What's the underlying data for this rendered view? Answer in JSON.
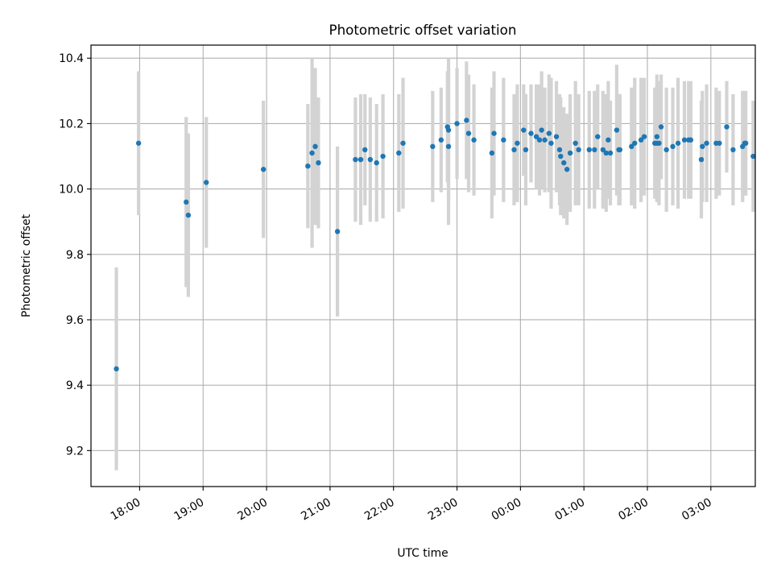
{
  "chart_data": {
    "type": "scatter",
    "title": "Photometric offset variation",
    "xlabel": "UTC time",
    "ylabel": "Photometric offset",
    "x_is_time": true,
    "x_ticks": [
      "18:00",
      "19:00",
      "20:00",
      "21:00",
      "22:00",
      "23:00",
      "00:00",
      "01:00",
      "02:00",
      "03:00"
    ],
    "x_tick_values": [
      "2021-01-01 18:00",
      "2021-01-01 19:00",
      "2021-01-01 20:00",
      "2021-01-01 21:00",
      "2021-01-01 22:00",
      "2021-01-01 23:00",
      "2021-01-02 00:00",
      "2021-01-02 01:00",
      "2021-01-02 02:00",
      "2021-01-02 03:00"
    ],
    "xlim": [
      "2021-01-01 17:14",
      "2021-01-02 03:42"
    ],
    "ylim": [
      9.09,
      10.44
    ],
    "y_ticks": [
      "9.2",
      "9.4",
      "9.6",
      "9.8",
      "10.0",
      "10.2",
      "10.4"
    ],
    "y_tick_values": [
      9.2,
      9.4,
      9.6,
      9.8,
      10.0,
      10.2,
      10.4
    ],
    "grid": true,
    "marker_color": "#1f77b4",
    "errorbar_color": "#d3d3d3",
    "series": [
      {
        "x": [
          "2021-01-01 17:38",
          "2021-01-01 17:59",
          "2021-01-01 18:44",
          "2021-01-01 18:46",
          "2021-01-01 19:03",
          "2021-01-01 19:57",
          "2021-01-01 20:39",
          "2021-01-01 20:43",
          "2021-01-01 20:46",
          "2021-01-01 20:49",
          "2021-01-01 21:07",
          "2021-01-01 21:24",
          "2021-01-01 21:29",
          "2021-01-01 21:33",
          "2021-01-01 21:38",
          "2021-01-01 21:44",
          "2021-01-01 21:50",
          "2021-01-01 22:05",
          "2021-01-01 22:09",
          "2021-01-01 22:37",
          "2021-01-01 22:45",
          "2021-01-01 22:51",
          "2021-01-01 22:52",
          "2021-01-01 22:52",
          "2021-01-01 23:00",
          "2021-01-01 23:09",
          "2021-01-01 23:11",
          "2021-01-01 23:16",
          "2021-01-01 23:33",
          "2021-01-01 23:35",
          "2021-01-01 23:44",
          "2021-01-01 23:54",
          "2021-01-01 23:57",
          "2021-01-02 00:03",
          "2021-01-02 00:05",
          "2021-01-02 00:10",
          "2021-01-02 00:15",
          "2021-01-02 00:18",
          "2021-01-02 00:20",
          "2021-01-02 00:23",
          "2021-01-02 00:27",
          "2021-01-02 00:29",
          "2021-01-02 00:34",
          "2021-01-02 00:37",
          "2021-01-02 00:38",
          "2021-01-02 00:41",
          "2021-01-02 00:44",
          "2021-01-02 00:47",
          "2021-01-02 00:52",
          "2021-01-02 00:55",
          "2021-01-02 01:05",
          "2021-01-02 01:10",
          "2021-01-02 01:13",
          "2021-01-02 01:18",
          "2021-01-02 01:21",
          "2021-01-02 01:23",
          "2021-01-02 01:25",
          "2021-01-02 01:31",
          "2021-01-02 01:33",
          "2021-01-02 01:34",
          "2021-01-02 01:45",
          "2021-01-02 01:48",
          "2021-01-02 01:54",
          "2021-01-02 01:57",
          "2021-01-02 02:07",
          "2021-01-02 02:09",
          "2021-01-02 02:09",
          "2021-01-02 02:11",
          "2021-01-02 02:13",
          "2021-01-02 02:18",
          "2021-01-02 02:24",
          "2021-01-02 02:29",
          "2021-01-02 02:35",
          "2021-01-02 02:39",
          "2021-01-02 02:41",
          "2021-01-02 02:51",
          "2021-01-02 02:52",
          "2021-01-02 02:56",
          "2021-01-02 03:05",
          "2021-01-02 03:08",
          "2021-01-02 03:15",
          "2021-01-02 03:21",
          "2021-01-02 03:30",
          "2021-01-02 03:32",
          "2021-01-02 03:33",
          "2021-01-02 03:40"
        ],
        "y": [
          9.45,
          10.14,
          9.96,
          9.92,
          10.02,
          10.06,
          10.07,
          10.11,
          10.13,
          10.08,
          9.87,
          10.09,
          10.09,
          10.12,
          10.09,
          10.08,
          10.1,
          10.11,
          10.14,
          10.13,
          10.15,
          10.19,
          10.18,
          10.13,
          10.2,
          10.21,
          10.17,
          10.15,
          10.11,
          10.17,
          10.15,
          10.12,
          10.14,
          10.18,
          10.12,
          10.17,
          10.16,
          10.15,
          10.18,
          10.15,
          10.17,
          10.14,
          10.16,
          10.12,
          10.1,
          10.08,
          10.06,
          10.11,
          10.14,
          10.12,
          10.12,
          10.12,
          10.16,
          10.12,
          10.11,
          10.15,
          10.11,
          10.18,
          10.12,
          10.12,
          10.13,
          10.14,
          10.15,
          10.16,
          10.14,
          10.16,
          10.14,
          10.14,
          10.19,
          10.12,
          10.13,
          10.14,
          10.15,
          10.15,
          10.15,
          10.09,
          10.13,
          10.14,
          10.14,
          10.14,
          10.19,
          10.12,
          10.13,
          10.14,
          10.14,
          10.1
        ],
        "yerr": [
          0.31,
          0.22,
          0.26,
          0.25,
          0.2,
          0.21,
          0.19,
          0.29,
          0.24,
          0.2,
          0.26,
          0.19,
          0.2,
          0.17,
          0.19,
          0.18,
          0.19,
          0.18,
          0.2,
          0.17,
          0.16,
          0.17,
          0.22,
          0.24,
          0.17,
          0.18,
          0.18,
          0.17,
          0.2,
          0.19,
          0.19,
          0.17,
          0.18,
          0.14,
          0.17,
          0.15,
          0.16,
          0.17,
          0.18,
          0.16,
          0.18,
          0.2,
          0.17,
          0.17,
          0.18,
          0.17,
          0.17,
          0.18,
          0.19,
          0.17,
          0.18,
          0.18,
          0.16,
          0.18,
          0.18,
          0.18,
          0.16,
          0.2,
          0.17,
          0.17,
          0.18,
          0.2,
          0.19,
          0.18,
          0.17,
          0.19,
          0.18,
          0.19,
          0.16,
          0.19,
          0.18,
          0.2,
          0.18,
          0.18,
          0.18,
          0.18,
          0.17,
          0.18,
          0.17,
          0.16,
          0.14,
          0.17,
          0.17,
          0.16,
          0.16,
          0.17
        ]
      }
    ]
  }
}
